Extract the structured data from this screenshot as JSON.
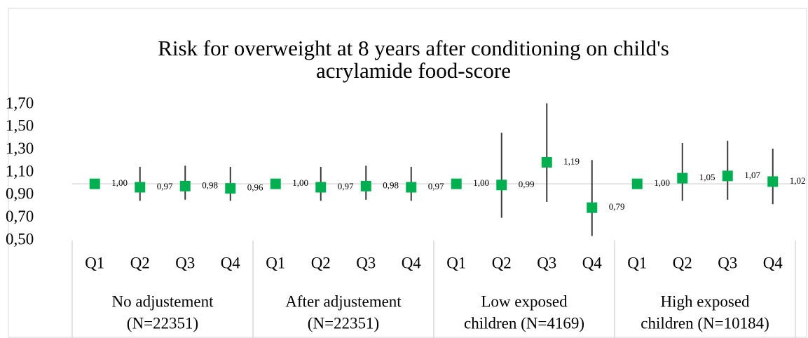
{
  "chart_data": {
    "type": "errorpoint",
    "title": [
      "Risk for overweight at 8 years after conditioning on child's",
      "acrylamide food-score"
    ],
    "categories": [
      "Q1",
      "Q2",
      "Q3",
      "Q4",
      "Q1",
      "Q2",
      "Q3",
      "Q4",
      "Q1",
      "Q2",
      "Q3",
      "Q4",
      "Q1",
      "Q2",
      "Q3",
      "Q4"
    ],
    "groups": [
      [
        "No adjustement",
        "(N=22351)"
      ],
      [
        "After adjustement",
        "(N=22351)"
      ],
      [
        "Low exposed",
        "children (N=4169)"
      ],
      [
        "High exposed",
        "children (N=10184)"
      ]
    ],
    "series": [
      {
        "color": "#00b050",
        "values": [
          1.0,
          0.97,
          0.98,
          0.96,
          1.0,
          0.97,
          0.98,
          0.97,
          1.0,
          0.99,
          1.19,
          0.79,
          1.0,
          1.05,
          1.07,
          1.02
        ],
        "value_labels": [
          "1,00",
          "0,97",
          "0,98",
          "0,96",
          "1,00",
          "0,97",
          "0,98",
          "0,97",
          "1,00",
          "0,99",
          "1,19",
          "0,79",
          "1,00",
          "1,05",
          "1,07",
          "1,02"
        ],
        "lower": [
          null,
          0.85,
          0.86,
          0.85,
          null,
          0.85,
          0.86,
          0.85,
          null,
          0.7,
          0.84,
          0.54,
          null,
          0.85,
          0.86,
          0.82
        ],
        "upper": [
          null,
          1.15,
          1.16,
          1.15,
          null,
          1.15,
          1.16,
          1.15,
          null,
          1.45,
          1.71,
          1.21,
          null,
          1.36,
          1.38,
          1.31
        ]
      }
    ],
    "ylim": [
      0.5,
      1.7
    ],
    "yticks": [
      {
        "value": 0.5,
        "label": "0,50"
      },
      {
        "value": 0.7,
        "label": "0,70"
      },
      {
        "value": 0.9,
        "label": "0,90"
      },
      {
        "value": 1.1,
        "label": "1,10"
      },
      {
        "value": 1.3,
        "label": "1,30"
      },
      {
        "value": 1.5,
        "label": "1,50"
      },
      {
        "value": 1.7,
        "label": "1,70"
      }
    ],
    "reference_line": 1,
    "error_color": "#3a3a3a"
  }
}
